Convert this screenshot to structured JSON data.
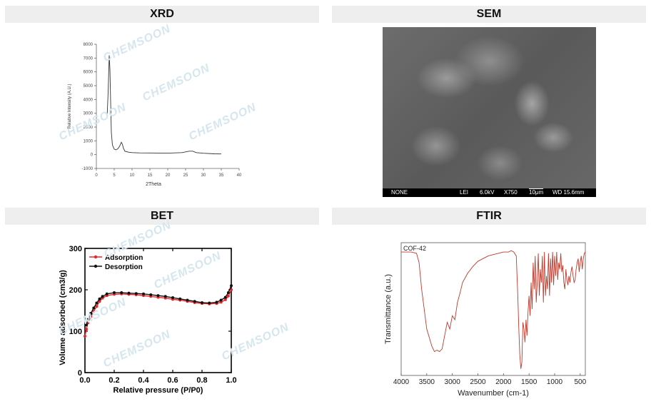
{
  "panels": {
    "xrd": "XRD",
    "sem": "SEM",
    "bet": "BET",
    "ftir": "FTIR"
  },
  "watermark": "CHEMSOON",
  "sem_info": {
    "left": "NONE",
    "mode": "LEI",
    "voltage": "6.0kV",
    "mag": "X750",
    "scale": "10μm",
    "wd": "WD 15.6mm"
  },
  "chart_data": [
    {
      "id": "xrd",
      "type": "line",
      "xlabel": "2Theta",
      "ylabel": "Relative Intensity (A.U.)",
      "xlim": [
        0,
        40
      ],
      "ylim": [
        -1000,
        8000
      ],
      "xticks": [
        0,
        5,
        10,
        15,
        20,
        25,
        30,
        35,
        40
      ],
      "yticks": [
        -1000,
        0,
        1000,
        2000,
        3000,
        4000,
        5000,
        6000,
        7000,
        8000
      ],
      "color": "#333333",
      "series": [
        {
          "x": [
            3.0,
            3.3,
            3.6,
            3.8,
            4.0,
            4.2,
            4.5,
            5.0,
            5.5,
            6.0,
            6.5,
            7.0,
            7.3,
            7.6,
            8.0,
            9.0,
            10,
            12,
            15,
            20,
            24,
            26,
            27,
            28,
            30,
            33,
            35
          ],
          "y": [
            2700,
            4500,
            7200,
            6200,
            3800,
            1600,
            700,
            400,
            350,
            420,
            600,
            900,
            750,
            450,
            250,
            180,
            150,
            130,
            120,
            110,
            150,
            250,
            250,
            150,
            100,
            60,
            50
          ]
        }
      ]
    },
    {
      "id": "bet",
      "type": "line",
      "xlabel": "Relative pressure  (P/P0)",
      "ylabel": "Volume adsorbed (cm3/g)",
      "xlim": [
        0,
        1
      ],
      "ylim": [
        0,
        300
      ],
      "xticks": [
        0.0,
        0.2,
        0.4,
        0.6,
        0.8,
        1.0
      ],
      "yticks": [
        0,
        100,
        200,
        300
      ],
      "legend": "top-left",
      "series": [
        {
          "name": "Adsorption",
          "color": "#e8262a",
          "x": [
            0.0,
            0.01,
            0.02,
            0.04,
            0.06,
            0.08,
            0.1,
            0.12,
            0.15,
            0.2,
            0.25,
            0.3,
            0.35,
            0.4,
            0.45,
            0.5,
            0.55,
            0.6,
            0.65,
            0.7,
            0.75,
            0.8,
            0.85,
            0.9,
            0.93,
            0.96,
            0.98,
            1.0
          ],
          "y": [
            88,
            105,
            120,
            135,
            148,
            160,
            172,
            180,
            186,
            189,
            190,
            189,
            188,
            186,
            184,
            182,
            180,
            177,
            175,
            172,
            169,
            167,
            166,
            167,
            170,
            176,
            185,
            200
          ]
        },
        {
          "name": "Desorption",
          "color": "#111111",
          "x": [
            1.0,
            0.98,
            0.96,
            0.93,
            0.9,
            0.85,
            0.8,
            0.75,
            0.7,
            0.65,
            0.6,
            0.55,
            0.5,
            0.45,
            0.4,
            0.35,
            0.3,
            0.25,
            0.2,
            0.15,
            0.12,
            0.1,
            0.08,
            0.06,
            0.04,
            0.02,
            0.01
          ],
          "y": [
            210,
            193,
            182,
            175,
            170,
            168,
            169,
            172,
            175,
            178,
            181,
            184,
            186,
            188,
            190,
            191,
            192,
            193,
            193,
            190,
            184,
            178,
            168,
            156,
            143,
            128,
            115
          ]
        }
      ]
    },
    {
      "id": "ftir",
      "type": "line",
      "xlabel": "Wavenumber (cm-1)",
      "ylabel": "Transmittance  (a.u.)",
      "xlim": [
        4000,
        400
      ],
      "xticks": [
        4000,
        3500,
        3000,
        2500,
        2000,
        1500,
        1000,
        500
      ],
      "annotation": "COF-42",
      "color": "#c0392b",
      "series": [
        {
          "x": [
            4000,
            3800,
            3700,
            3650,
            3600,
            3500,
            3400,
            3350,
            3300,
            3250,
            3200,
            3150,
            3100,
            3050,
            3000,
            2950,
            2900,
            2850,
            2800,
            2700,
            2600,
            2500,
            2400,
            2300,
            2200,
            2100,
            2000,
            1900,
            1850,
            1800,
            1750,
            1720,
            1700,
            1680,
            1660,
            1640,
            1620,
            1600,
            1580,
            1560,
            1540,
            1520,
            1500,
            1480,
            1460,
            1440,
            1420,
            1400,
            1380,
            1360,
            1340,
            1320,
            1300,
            1280,
            1260,
            1240,
            1220,
            1200,
            1180,
            1160,
            1140,
            1120,
            1100,
            1080,
            1060,
            1040,
            1020,
            1000,
            980,
            960,
            940,
            920,
            900,
            880,
            860,
            840,
            820,
            800,
            780,
            760,
            740,
            720,
            700,
            680,
            660,
            640,
            620,
            600,
            580,
            560,
            540,
            520,
            500,
            480,
            460,
            440,
            420,
            400
          ],
          "y": [
            0.93,
            0.93,
            0.92,
            0.85,
            0.65,
            0.35,
            0.22,
            0.18,
            0.19,
            0.18,
            0.2,
            0.3,
            0.4,
            0.35,
            0.45,
            0.42,
            0.55,
            0.62,
            0.7,
            0.77,
            0.82,
            0.86,
            0.88,
            0.9,
            0.91,
            0.92,
            0.93,
            0.93,
            0.94,
            0.93,
            0.9,
            0.6,
            0.35,
            0.15,
            0.05,
            0.1,
            0.4,
            0.35,
            0.25,
            0.42,
            0.3,
            0.48,
            0.6,
            0.45,
            0.7,
            0.5,
            0.85,
            0.65,
            0.9,
            0.55,
            0.7,
            0.92,
            0.6,
            0.8,
            0.7,
            0.9,
            0.55,
            0.93,
            0.6,
            0.75,
            0.65,
            0.92,
            0.6,
            0.88,
            0.7,
            0.93,
            0.68,
            0.9,
            0.75,
            0.93,
            0.72,
            0.85,
            0.8,
            0.92,
            0.78,
            0.83,
            0.7,
            0.65,
            0.8,
            0.72,
            0.68,
            0.75,
            0.7,
            0.78,
            0.82,
            0.75,
            0.7,
            0.72,
            0.8,
            0.85,
            0.88,
            0.78,
            0.85,
            0.9,
            0.8,
            0.88,
            0.92,
            0.93
          ]
        }
      ]
    }
  ]
}
